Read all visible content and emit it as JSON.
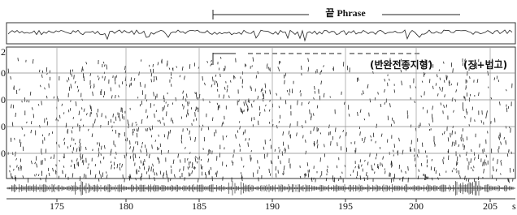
{
  "header": {
    "phrase": "끝 Phrase"
  },
  "annotations": [
    "(반완전종지형)",
    "(징+법고)"
  ],
  "y_axis": {
    "labels": [
      "2",
      "0",
      "0",
      "0",
      "0"
    ]
  },
  "x_axis": {
    "labels": [
      "175",
      "180",
      "185",
      "190",
      "195",
      "200",
      "205"
    ],
    "unit": "s"
  }
}
